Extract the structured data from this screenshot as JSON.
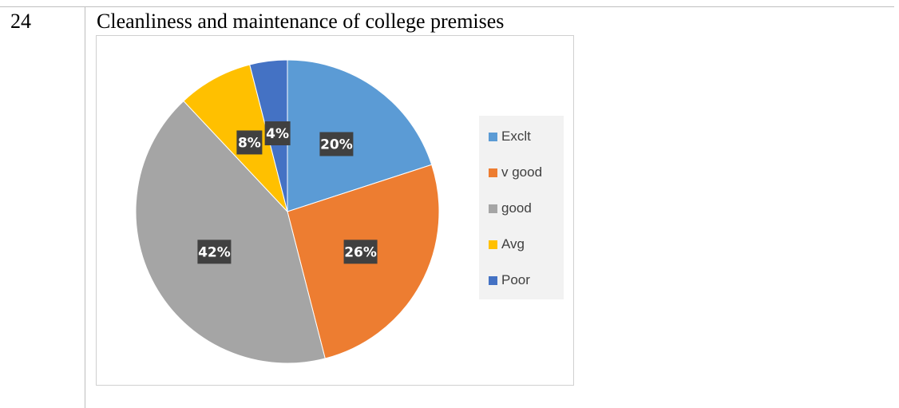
{
  "row": {
    "number": "24",
    "title": "Cleanliness and maintenance of college premises"
  },
  "chart_data": {
    "type": "pie",
    "title": "",
    "categories": [
      "Exclt",
      "v good",
      "good",
      "Avg",
      "Poor"
    ],
    "values": [
      20,
      26,
      42,
      8,
      4
    ],
    "labels": [
      "20%",
      "26%",
      "42%",
      "8%",
      "4%"
    ],
    "colors": [
      "#5b9bd5",
      "#ed7d31",
      "#a5a5a5",
      "#ffc000",
      "#4472c4"
    ],
    "legend_position": "right",
    "data_label_style": {
      "background": "#404040",
      "color": "#ffffff"
    }
  }
}
